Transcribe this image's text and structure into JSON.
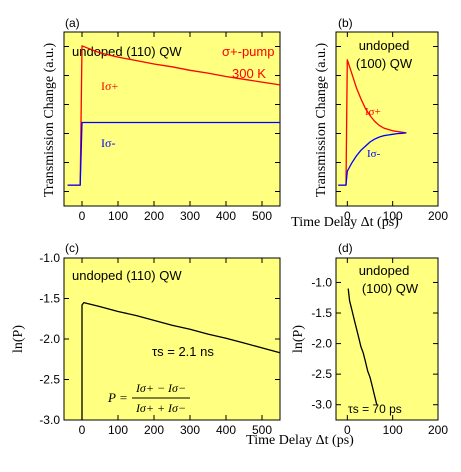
{
  "chart_data": [
    {
      "id": "a",
      "type": "line",
      "panel_label": "(a)",
      "annotations": [
        "undoped (110) QW",
        "σ+-pump",
        "300 K"
      ],
      "ylabel": "Transmission Change (a.u.)",
      "xlabel": "Time Delay Δt (ps)",
      "xlim": [
        -50,
        550
      ],
      "xticks": [
        0,
        100,
        200,
        300,
        400,
        500
      ],
      "yticks_labeled": false,
      "series": [
        {
          "name": "Iσ+",
          "color": "#ff0000",
          "x": [
            -40,
            -5,
            0,
            10,
            50,
            100,
            150,
            200,
            250,
            300,
            350,
            400,
            450,
            500,
            550
          ],
          "y": [
            0.0,
            0.0,
            1.0,
            0.99,
            0.95,
            0.92,
            0.895,
            0.87,
            0.85,
            0.825,
            0.805,
            0.78,
            0.76,
            0.74,
            0.72
          ]
        },
        {
          "name": "Iσ-",
          "color": "#0000ff",
          "x": [
            -40,
            -5,
            0,
            10,
            50,
            100,
            150,
            200,
            250,
            300,
            350,
            400,
            450,
            500,
            550
          ],
          "y": [
            0.0,
            0.0,
            0.45,
            0.45,
            0.45,
            0.45,
            0.45,
            0.45,
            0.45,
            0.45,
            0.45,
            0.45,
            0.45,
            0.45,
            0.45
          ]
        }
      ]
    },
    {
      "id": "b",
      "type": "line",
      "panel_label": "(b)",
      "annotations": [
        "undoped",
        "(100) QW"
      ],
      "ylabel": "Transmission Change (a.u.)",
      "xlim": [
        -25,
        200
      ],
      "xticks": [
        0,
        100,
        200
      ],
      "yticks_labeled": false,
      "series": [
        {
          "name": "Iσ+",
          "color": "#ff0000",
          "x": [
            -20,
            -3,
            0,
            5,
            10,
            20,
            30,
            40,
            50,
            60,
            70,
            80,
            90,
            100,
            110,
            120,
            130
          ],
          "y": [
            0.0,
            0.0,
            0.9,
            0.85,
            0.8,
            0.7,
            0.62,
            0.55,
            0.5,
            0.46,
            0.43,
            0.41,
            0.4,
            0.39,
            0.385,
            0.38,
            0.375
          ]
        },
        {
          "name": "Iσ-",
          "color": "#0000ff",
          "x": [
            -20,
            -3,
            0,
            5,
            10,
            20,
            30,
            40,
            50,
            60,
            70,
            80,
            90,
            100,
            110,
            120,
            130
          ],
          "y": [
            0.0,
            0.0,
            0.1,
            0.13,
            0.16,
            0.21,
            0.25,
            0.28,
            0.31,
            0.33,
            0.345,
            0.355,
            0.36,
            0.365,
            0.37,
            0.372,
            0.375
          ]
        }
      ]
    },
    {
      "id": "c",
      "type": "line",
      "panel_label": "(c)",
      "annotations": [
        "undoped (110) QW",
        "τs = 2.1 ns"
      ],
      "formula": {
        "lhs": "P =",
        "num": "Iσ+ − Iσ−",
        "den": "Iσ+ + Iσ−"
      },
      "ylabel": "ln(P)",
      "xlabel": "Time Delay Δt (ps)",
      "xlim": [
        -50,
        550
      ],
      "ylim": [
        -3.0,
        -1.0
      ],
      "xticks": [
        0,
        100,
        200,
        300,
        400,
        500
      ],
      "yticks": [
        -3.0,
        -2.5,
        -2.0,
        -1.5,
        -1.0
      ],
      "series": [
        {
          "name": "ln(P)",
          "color": "#000000",
          "x": [
            0,
            0,
            5,
            50,
            100,
            150,
            200,
            250,
            300,
            350,
            400,
            450,
            500,
            550
          ],
          "y": [
            -3.0,
            -1.58,
            -1.55,
            -1.6,
            -1.66,
            -1.71,
            -1.77,
            -1.83,
            -1.88,
            -1.94,
            -1.99,
            -2.05,
            -2.11,
            -2.17
          ]
        }
      ]
    },
    {
      "id": "d",
      "type": "line",
      "panel_label": "(d)",
      "annotations": [
        "undoped",
        "(100) QW",
        "τs = 70 ps"
      ],
      "ylabel": "ln(P)",
      "xlim": [
        -25,
        200
      ],
      "ylim": [
        -3.25,
        -0.6
      ],
      "xticks": [
        0,
        100,
        200
      ],
      "yticks": [
        -3.0,
        -2.5,
        -2.0,
        -1.5,
        -1.0
      ],
      "series": [
        {
          "name": "ln(P)",
          "color": "#000000",
          "x": [
            2,
            5,
            10,
            15,
            20,
            25,
            30,
            35,
            40,
            45,
            50,
            55,
            60,
            65
          ],
          "y": [
            -1.1,
            -1.3,
            -1.45,
            -1.6,
            -1.75,
            -1.9,
            -2.05,
            -2.15,
            -2.3,
            -2.45,
            -2.55,
            -2.7,
            -2.85,
            -3.0
          ]
        }
      ]
    }
  ]
}
